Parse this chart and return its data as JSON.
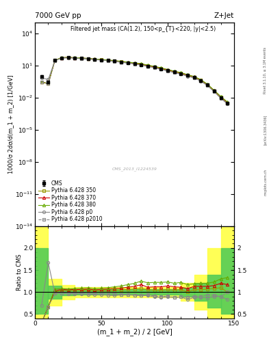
{
  "title_left": "7000 GeV pp",
  "title_right": "Z+Jet",
  "plot_title": "Filtered jet mass (CA(1.2), 150<p_{T}<220, |y|<2.5)",
  "ylabel_main": "1000/σ 2dσ/d(m_1 + m_2) [1/GeV]",
  "ylabel_ratio": "Ratio to CMS",
  "xlabel": "(m_1 + m_2) / 2 [GeV]",
  "watermark": "CMS_2013_I1224539",
  "rivet_label": "Rivet 3.1.10, ≥ 3.1M events",
  "arxiv_label": "[arXiv:1306.3436]",
  "mcplots_label": "mcplots.cern.ch",
  "x_data": [
    5,
    10,
    15,
    20,
    25,
    30,
    35,
    40,
    45,
    50,
    55,
    60,
    65,
    70,
    75,
    80,
    85,
    90,
    95,
    100,
    105,
    110,
    115,
    120,
    125,
    130,
    135,
    140,
    145
  ],
  "cms_y": [
    1.0,
    0.3,
    30.0,
    50.0,
    55.0,
    50.0,
    47.0,
    42.0,
    38.0,
    34.0,
    30.0,
    26.0,
    22.0,
    18.0,
    15.0,
    12.0,
    9.0,
    7.0,
    5.0,
    3.5,
    2.5,
    1.8,
    1.2,
    0.8,
    0.4,
    0.15,
    0.04,
    0.01,
    0.003
  ],
  "cms_yerr": [
    0.2,
    0.1,
    4.0,
    5.0,
    5.0,
    4.0,
    3.5,
    3.0,
    2.5,
    2.0,
    1.5,
    1.2,
    1.0,
    0.8,
    0.7,
    0.6,
    0.4,
    0.3,
    0.2,
    0.15,
    0.1,
    0.08,
    0.06,
    0.04,
    0.02,
    0.01,
    0.003,
    0.001,
    0.0003
  ],
  "py350_y": [
    0.3,
    0.2,
    30.0,
    52.0,
    57.0,
    52.0,
    49.0,
    44.0,
    39.0,
    35.0,
    31.0,
    27.0,
    23.0,
    19.0,
    16.0,
    13.0,
    9.5,
    7.3,
    5.2,
    3.7,
    2.6,
    1.9,
    1.2,
    0.85,
    0.42,
    0.16,
    0.043,
    0.011,
    0.003
  ],
  "py370_y": [
    0.3,
    0.2,
    31.0,
    53.0,
    58.0,
    53.0,
    50.0,
    45.0,
    40.0,
    36.0,
    32.0,
    28.0,
    24.0,
    20.0,
    17.0,
    14.0,
    10.0,
    7.8,
    5.6,
    4.0,
    2.8,
    2.0,
    1.3,
    0.9,
    0.45,
    0.17,
    0.046,
    0.012,
    0.0035
  ],
  "py380_y": [
    0.3,
    0.2,
    32.0,
    54.0,
    59.0,
    54.0,
    51.0,
    46.0,
    41.0,
    37.0,
    33.0,
    29.0,
    25.0,
    21.0,
    18.0,
    15.0,
    11.0,
    8.5,
    6.1,
    4.3,
    3.0,
    2.2,
    1.4,
    0.95,
    0.48,
    0.18,
    0.049,
    0.013,
    0.004
  ],
  "pyp0_y": [
    0.7,
    0.5,
    29.0,
    49.0,
    53.0,
    48.0,
    45.0,
    40.0,
    36.0,
    32.0,
    28.0,
    24.0,
    20.0,
    17.0,
    14.0,
    11.0,
    8.3,
    6.2,
    4.4,
    3.1,
    2.2,
    1.6,
    1.0,
    0.7,
    0.35,
    0.13,
    0.036,
    0.009,
    0.0025
  ],
  "pyp2010_y": [
    0.3,
    0.2,
    29.0,
    49.0,
    54.0,
    49.0,
    46.0,
    41.0,
    37.0,
    33.0,
    29.0,
    25.0,
    21.0,
    17.0,
    14.0,
    11.0,
    8.5,
    6.4,
    4.5,
    3.2,
    2.2,
    1.6,
    1.05,
    0.72,
    0.36,
    0.14,
    0.037,
    0.009,
    0.003
  ],
  "ratio_x": [
    5,
    10,
    15,
    20,
    25,
    30,
    35,
    40,
    45,
    50,
    55,
    60,
    65,
    70,
    75,
    80,
    85,
    90,
    95,
    100,
    105,
    110,
    115,
    120,
    125,
    130,
    135,
    140,
    145
  ],
  "ratio_py350": [
    0.3,
    0.67,
    1.0,
    1.04,
    1.04,
    1.04,
    1.04,
    1.05,
    1.03,
    1.03,
    1.03,
    1.04,
    1.05,
    1.06,
    1.07,
    1.08,
    1.06,
    1.04,
    1.04,
    1.06,
    1.04,
    1.06,
    1.0,
    1.06,
    1.05,
    1.07,
    1.08,
    1.1,
    1.0
  ],
  "ratio_py370": [
    0.3,
    0.67,
    1.03,
    1.06,
    1.05,
    1.06,
    1.06,
    1.07,
    1.05,
    1.06,
    1.07,
    1.08,
    1.09,
    1.11,
    1.13,
    1.17,
    1.11,
    1.12,
    1.12,
    1.14,
    1.12,
    1.11,
    1.08,
    1.13,
    1.13,
    1.13,
    1.15,
    1.2,
    1.17
  ],
  "ratio_py380": [
    0.3,
    0.67,
    1.07,
    1.08,
    1.07,
    1.08,
    1.09,
    1.1,
    1.08,
    1.09,
    1.1,
    1.12,
    1.14,
    1.17,
    1.2,
    1.25,
    1.21,
    1.22,
    1.22,
    1.23,
    1.2,
    1.22,
    1.17,
    1.19,
    1.2,
    1.2,
    1.23,
    1.3,
    1.33
  ],
  "ratio_pyp0": [
    0.7,
    1.67,
    0.97,
    0.98,
    0.96,
    0.96,
    0.96,
    0.95,
    0.95,
    0.94,
    0.93,
    0.92,
    0.94,
    0.94,
    0.93,
    0.92,
    0.92,
    0.89,
    0.88,
    0.89,
    0.88,
    0.89,
    0.83,
    0.88,
    0.88,
    0.87,
    0.9,
    0.9,
    0.83
  ],
  "ratio_pyp2010": [
    0.3,
    0.67,
    0.97,
    0.98,
    0.98,
    0.98,
    0.98,
    0.98,
    0.97,
    0.97,
    0.97,
    0.96,
    0.95,
    0.94,
    0.93,
    0.92,
    0.94,
    0.91,
    0.9,
    0.91,
    0.88,
    0.89,
    0.88,
    0.9,
    0.9,
    0.93,
    0.93,
    0.9,
    1.0
  ],
  "band_x_edges": [
    0,
    10,
    20,
    30,
    40,
    50,
    60,
    70,
    80,
    90,
    100,
    110,
    120,
    130,
    140,
    150
  ],
  "band_green_lo": [
    0.5,
    0.85,
    0.92,
    0.94,
    0.94,
    0.94,
    0.94,
    0.94,
    0.94,
    0.94,
    0.94,
    0.9,
    0.8,
    0.65,
    0.5,
    0.5
  ],
  "band_green_hi": [
    2.0,
    1.15,
    1.08,
    1.06,
    1.06,
    1.06,
    1.06,
    1.06,
    1.06,
    1.06,
    1.06,
    1.1,
    1.2,
    1.4,
    2.0,
    2.0
  ],
  "band_yellow_lo": [
    0.4,
    0.7,
    0.84,
    0.88,
    0.88,
    0.88,
    0.88,
    0.88,
    0.88,
    0.88,
    0.88,
    0.8,
    0.6,
    0.4,
    0.4,
    0.4
  ],
  "band_yellow_hi": [
    2.5,
    1.3,
    1.16,
    1.12,
    1.12,
    1.12,
    1.12,
    1.12,
    1.12,
    1.12,
    1.12,
    1.2,
    1.4,
    2.0,
    2.5,
    2.5
  ],
  "color_py350": "#999900",
  "color_py370": "#cc0000",
  "color_py380": "#66aa00",
  "color_pyp0": "#888888",
  "color_pyp2010": "#888888",
  "color_cms": "#000000",
  "ylim_main": [
    1e-14,
    100000.0
  ],
  "ylim_ratio": [
    0.4,
    2.5
  ],
  "xlim": [
    0,
    150
  ]
}
